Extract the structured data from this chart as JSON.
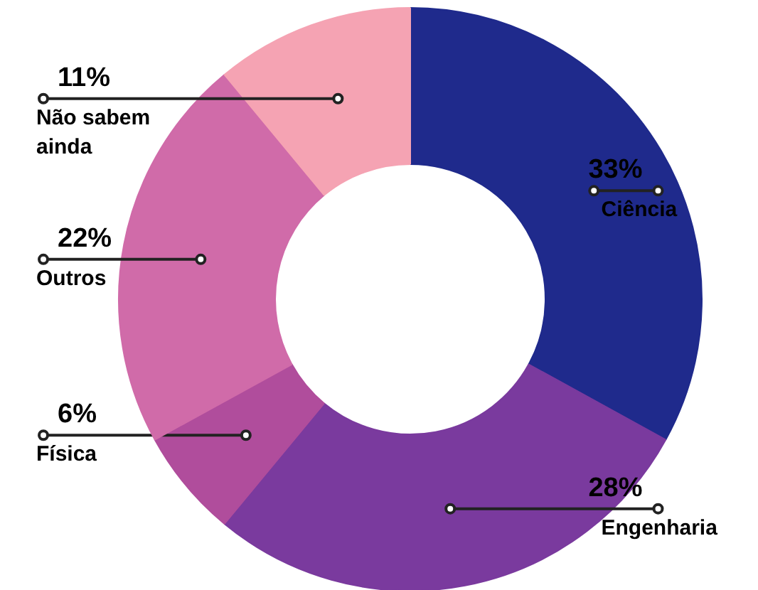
{
  "chart_data": {
    "type": "donut",
    "categories": [
      "Ciência",
      "Engenharia",
      "Física",
      "Outros",
      "Não sabem ainda"
    ],
    "values": [
      33,
      28,
      6,
      22,
      11
    ],
    "value_labels": [
      "33%",
      "28%",
      "6%",
      "22%",
      "11%"
    ],
    "colors": [
      "#1f2a8c",
      "#7a3a9e",
      "#b04d9c",
      "#d06ba9",
      "#f5a3b3"
    ]
  }
}
